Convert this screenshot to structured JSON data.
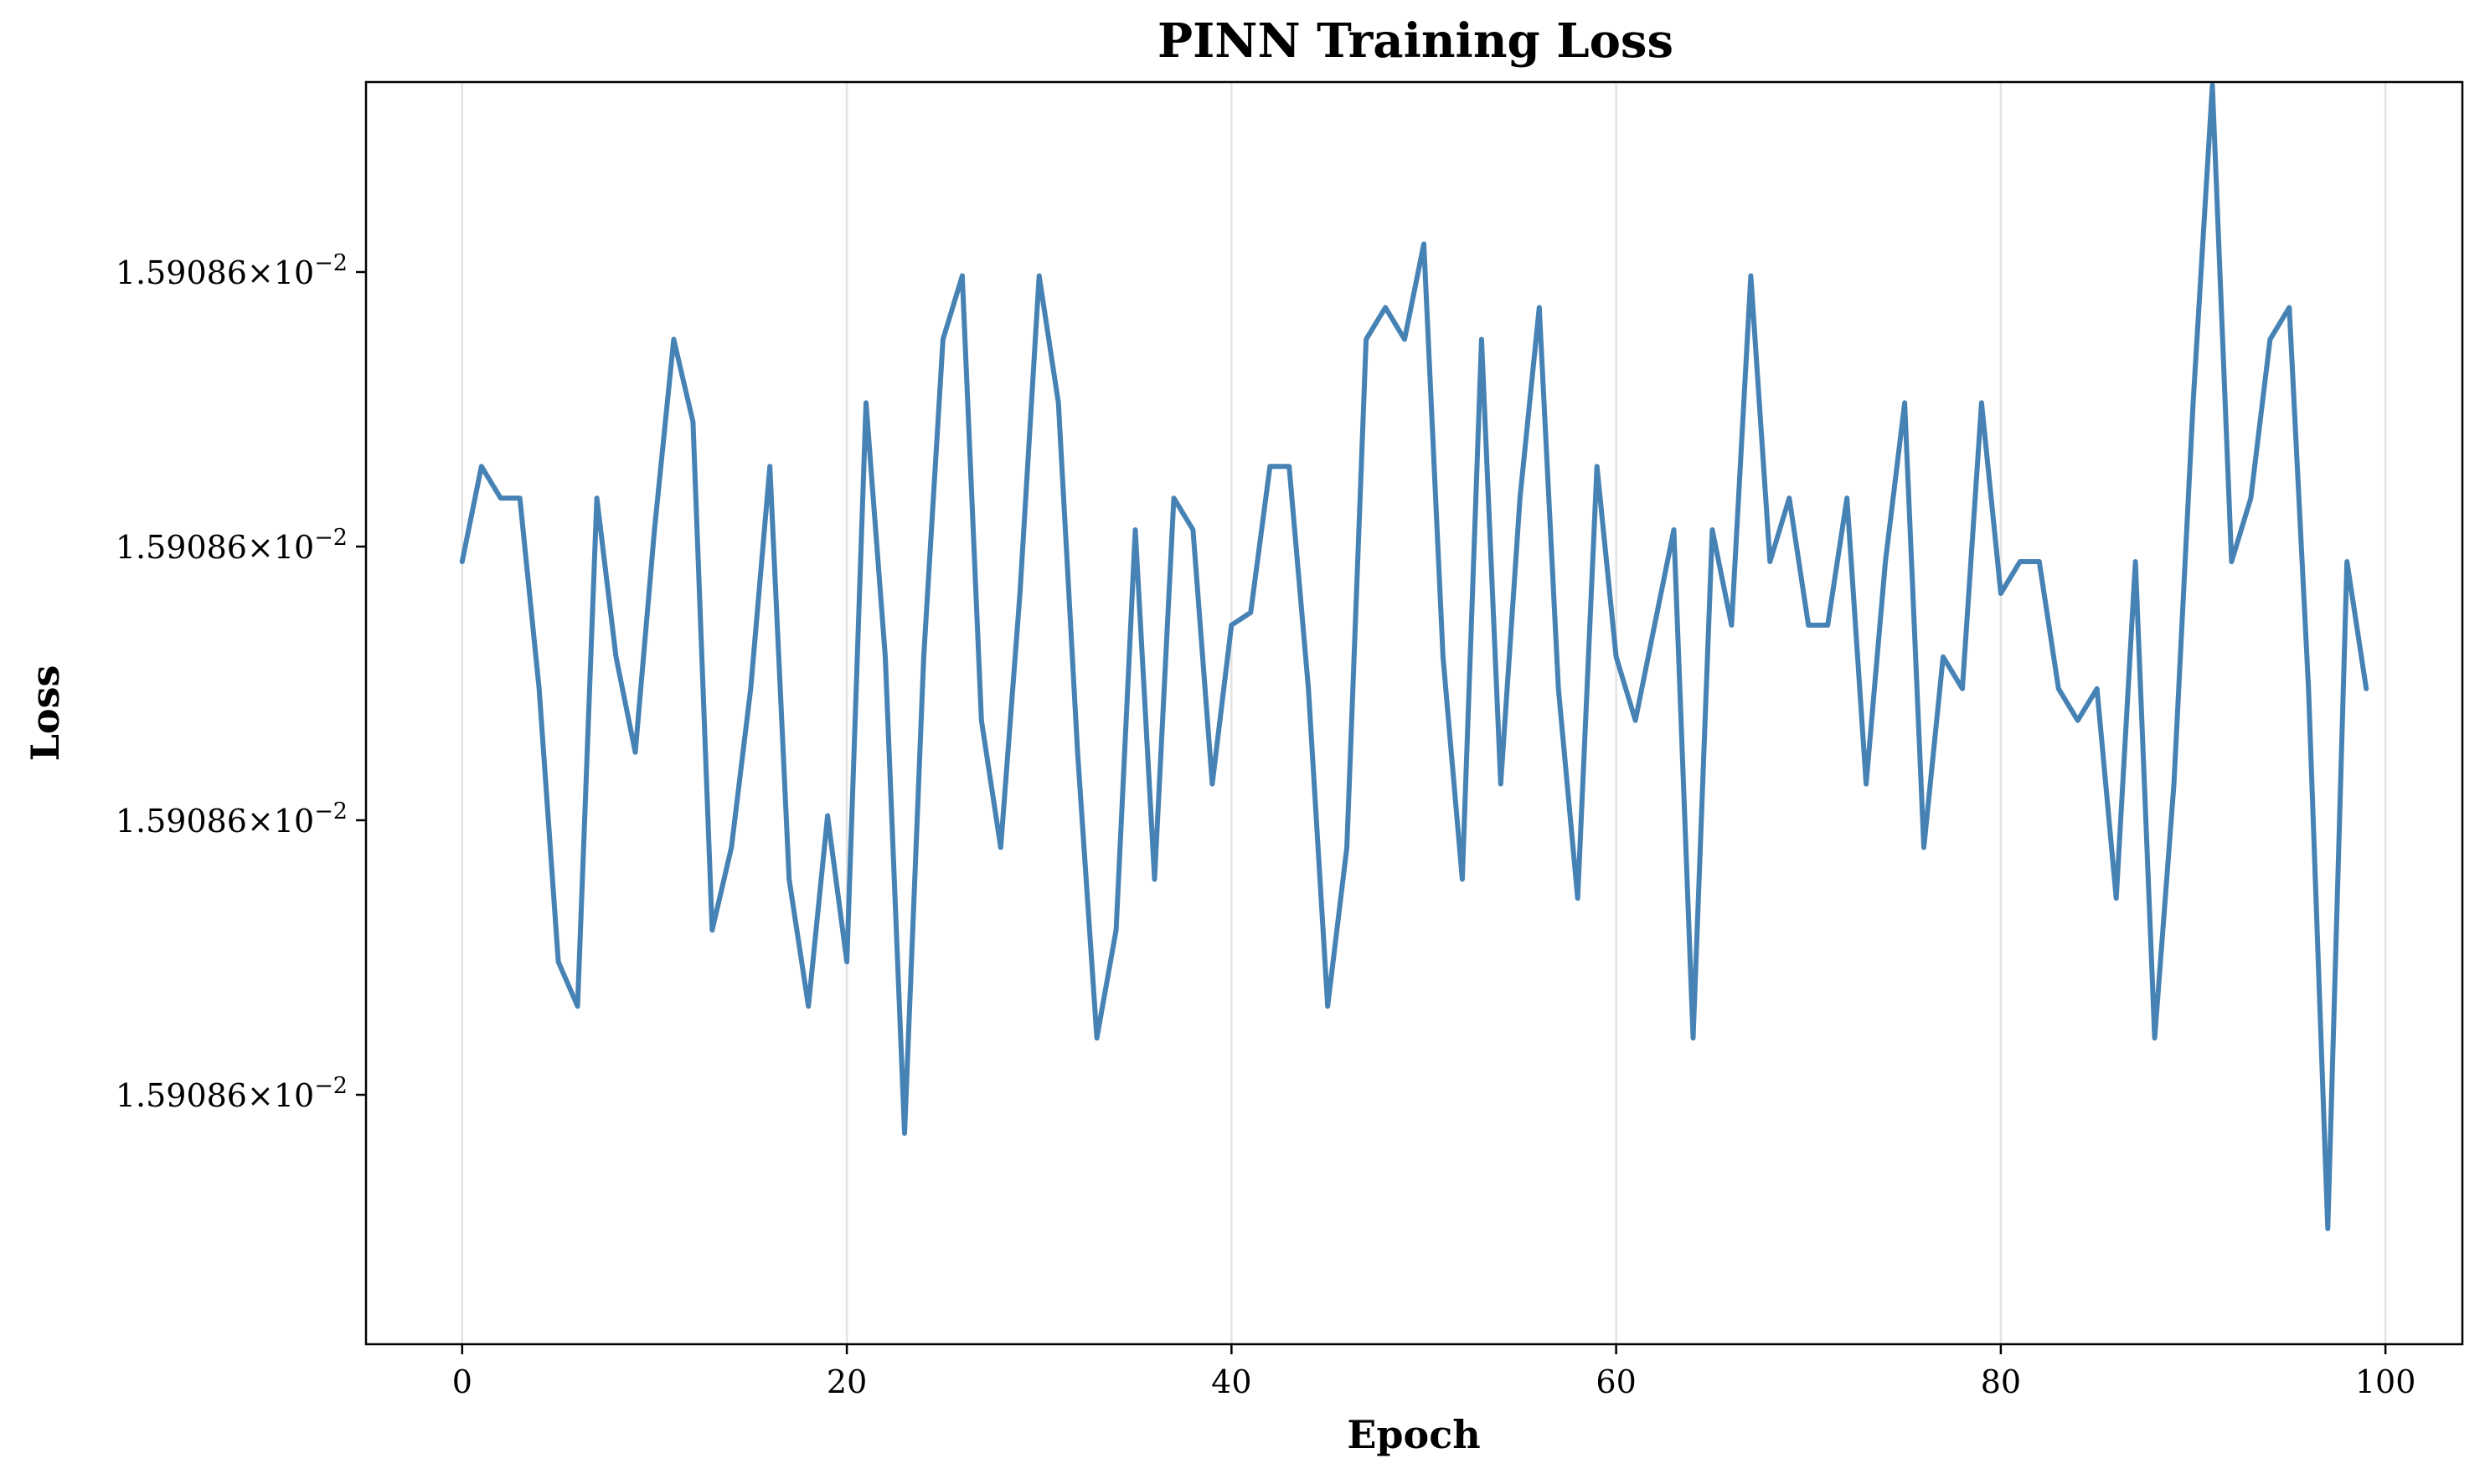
{
  "chart_data": {
    "type": "line",
    "title": "PINN Training Loss",
    "xlabel": "Epoch",
    "ylabel": "Loss",
    "x_ticks": [
      0,
      20,
      40,
      60,
      80,
      100
    ],
    "x_tick_labels": [
      "0",
      "20",
      "40",
      "60",
      "80",
      "100"
    ],
    "y_tick_labels": [
      "1.59086",
      "1.59086",
      "1.59086",
      "1.59086"
    ],
    "y_tick_exponent": "−2",
    "y_tick_base": "10",
    "xlim": [
      -5,
      104
    ],
    "ylim": [
      -0.082,
      1.905
    ],
    "grid": "vertical",
    "color": "#4682b4",
    "series": [
      {
        "x": [
          0,
          1,
          2,
          3,
          4,
          5,
          6,
          7,
          8,
          9,
          10,
          11,
          12,
          13,
          14,
          15,
          16,
          17,
          18,
          19,
          20,
          21,
          22,
          23,
          24,
          25,
          26,
          27,
          28,
          29,
          30,
          31,
          32,
          33,
          34,
          35,
          36,
          37,
          38,
          39,
          40,
          41,
          42,
          43,
          44,
          45,
          46,
          47,
          48,
          49,
          50,
          51,
          52,
          53,
          54,
          55,
          56,
          57,
          58,
          59,
          60,
          61,
          62,
          63,
          64,
          65,
          66,
          67,
          68,
          69,
          70,
          71,
          72,
          73,
          74,
          75,
          76,
          77,
          78,
          79,
          80,
          81,
          82,
          83,
          84,
          85,
          86,
          87,
          88,
          89,
          90,
          91,
          92,
          93,
          94,
          95,
          96,
          97,
          98,
          99
        ],
        "y": [
          1.15,
          1.3,
          1.25,
          1.25,
          0.95,
          0.52,
          0.45,
          1.25,
          1.0,
          0.85,
          1.2,
          1.5,
          1.37,
          0.57,
          0.7,
          0.95,
          1.3,
          0.65,
          0.45,
          0.75,
          0.52,
          1.4,
          1.0,
          0.25,
          1.0,
          1.5,
          1.6,
          0.9,
          0.7,
          1.1,
          1.6,
          1.4,
          0.85,
          0.4,
          0.57,
          1.2,
          0.65,
          1.25,
          1.2,
          0.8,
          1.05,
          1.07,
          1.3,
          1.3,
          0.95,
          0.45,
          0.7,
          1.5,
          1.55,
          1.5,
          1.65,
          1.0,
          0.65,
          1.5,
          0.8,
          1.25,
          1.55,
          0.95,
          0.62,
          1.3,
          1.0,
          0.9,
          1.05,
          1.2,
          0.4,
          1.2,
          1.05,
          1.6,
          1.15,
          1.25,
          1.05,
          1.05,
          1.25,
          0.8,
          1.15,
          1.4,
          0.7,
          1.0,
          0.95,
          1.4,
          1.1,
          1.15,
          1.15,
          0.95,
          0.9,
          0.95,
          0.62,
          1.15,
          0.4,
          0.8,
          1.4,
          1.9,
          1.15,
          1.25,
          1.5,
          1.55,
          0.95,
          0.1,
          1.15,
          0.95
        ]
      }
    ]
  }
}
